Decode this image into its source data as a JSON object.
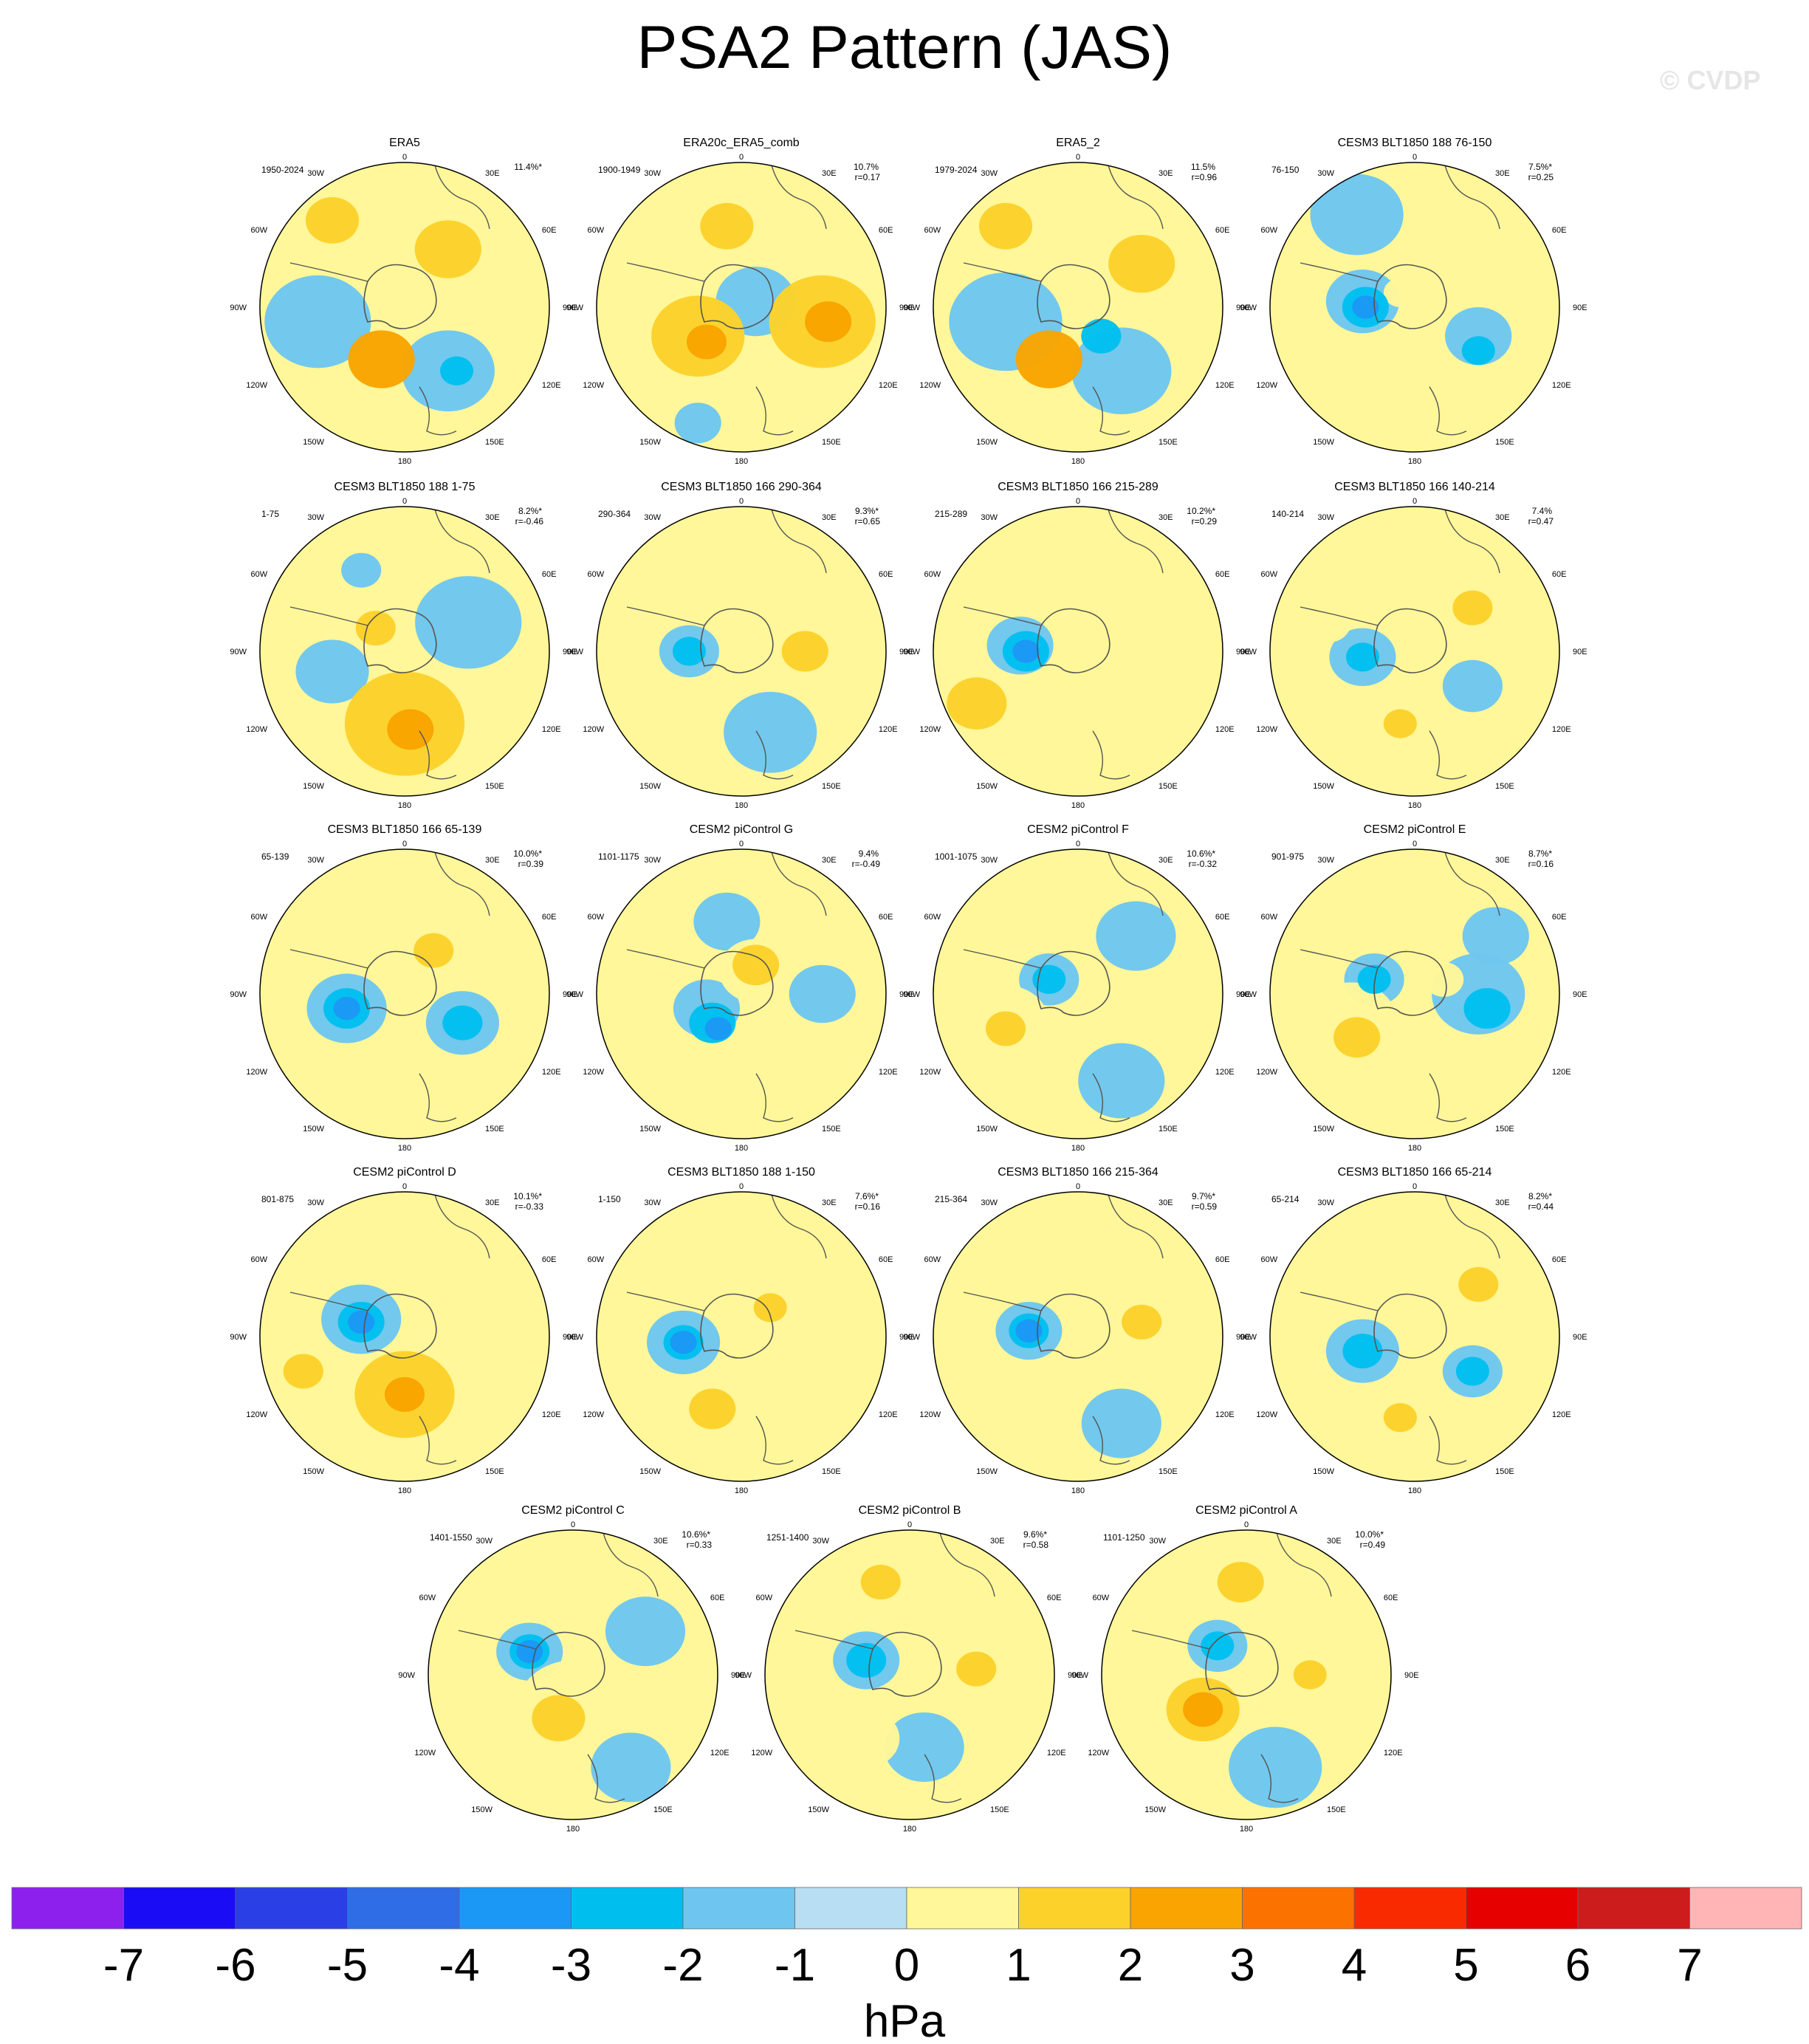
{
  "title": "PSA2 Pattern (JAS)",
  "watermark": "© CVDP",
  "colorbar": {
    "unit": "hPa",
    "ticks": [
      "-7",
      "-6",
      "-5",
      "-4",
      "-3",
      "-2",
      "-1",
      "0",
      "1",
      "2",
      "3",
      "4",
      "5",
      "6",
      "7"
    ],
    "colors": [
      "#8e20ee",
      "#1a0df5",
      "#2a3fe6",
      "#2f6de6",
      "#1b98f5",
      "#00bfef",
      "#6ec6f0",
      "#b7def2",
      "#fff799",
      "#fcd22a",
      "#f9a400",
      "#fb7200",
      "#fa2a00",
      "#e60000",
      "#cc1c1c",
      "#ffb5b5"
    ]
  },
  "grid_labels": {
    "top": "0",
    "bottom": "180",
    "left": [
      "30W",
      "60W",
      "90W",
      "120W",
      "150W"
    ],
    "right": [
      "30E",
      "60E",
      "90E",
      "120E",
      "150E"
    ]
  },
  "panels": [
    {
      "title": "ERA5",
      "period": "1950-2024",
      "pct": "11.4%*",
      "r": "",
      "blobs": [
        [
          0.25,
          0.2,
          0.08,
          2
        ],
        [
          0.65,
          0.3,
          0.1,
          2
        ],
        [
          0.5,
          0.25,
          0.12,
          1
        ],
        [
          0.2,
          0.55,
          0.16,
          -1
        ],
        [
          0.42,
          0.68,
          0.1,
          3
        ],
        [
          0.65,
          0.72,
          0.14,
          -1
        ],
        [
          0.68,
          0.72,
          0.05,
          -2
        ]
      ]
    },
    {
      "title": "ERA20c_ERA5_comb",
      "period": "1900-1949",
      "pct": "10.7%",
      "r": "r=0.17",
      "blobs": [
        [
          0.45,
          0.22,
          0.08,
          2
        ],
        [
          0.35,
          0.6,
          0.14,
          2
        ],
        [
          0.38,
          0.62,
          0.06,
          3
        ],
        [
          0.78,
          0.55,
          0.16,
          2
        ],
        [
          0.8,
          0.55,
          0.07,
          3
        ],
        [
          0.55,
          0.48,
          0.12,
          -1
        ],
        [
          0.35,
          0.9,
          0.07,
          -1
        ]
      ]
    },
    {
      "title": "ERA5_2",
      "period": "1979-2024",
      "pct": "11.5%",
      "r": "r=0.96",
      "blobs": [
        [
          0.25,
          0.22,
          0.08,
          2
        ],
        [
          0.72,
          0.35,
          0.1,
          2
        ],
        [
          0.25,
          0.55,
          0.17,
          -1
        ],
        [
          0.4,
          0.68,
          0.1,
          3
        ],
        [
          0.65,
          0.72,
          0.15,
          -1
        ],
        [
          0.58,
          0.6,
          0.06,
          -2
        ]
      ]
    },
    {
      "title": "CESM3 BLT1850 188 76-150",
      "period": "76-150",
      "pct": "7.5%*",
      "r": "r=0.25",
      "blobs": [
        [
          0.3,
          0.18,
          0.14,
          -1
        ],
        [
          0.32,
          0.48,
          0.11,
          -1
        ],
        [
          0.33,
          0.5,
          0.07,
          -2
        ],
        [
          0.33,
          0.5,
          0.04,
          -3
        ],
        [
          0.72,
          0.6,
          0.1,
          -1
        ],
        [
          0.72,
          0.65,
          0.05,
          -2
        ],
        [
          0.45,
          0.45,
          0.05,
          1
        ]
      ]
    },
    {
      "title": "CESM3 BLT1850 188 1-75",
      "period": "1-75",
      "pct": "8.2%*",
      "r": "r=-0.46",
      "blobs": [
        [
          0.35,
          0.22,
          0.06,
          -1
        ],
        [
          0.4,
          0.42,
          0.06,
          2
        ],
        [
          0.25,
          0.57,
          0.11,
          -1
        ],
        [
          0.5,
          0.75,
          0.18,
          2
        ],
        [
          0.52,
          0.77,
          0.07,
          3
        ],
        [
          0.72,
          0.4,
          0.16,
          -1
        ]
      ]
    },
    {
      "title": "CESM3 BLT1850 166 290-364",
      "period": "290-364",
      "pct": "9.3%*",
      "r": "r=0.65",
      "blobs": [
        [
          0.4,
          0.22,
          0.1,
          1
        ],
        [
          0.32,
          0.5,
          0.09,
          -1
        ],
        [
          0.32,
          0.5,
          0.05,
          -2
        ],
        [
          0.72,
          0.48,
          0.12,
          1
        ],
        [
          0.72,
          0.5,
          0.07,
          2
        ],
        [
          0.6,
          0.78,
          0.14,
          -1
        ]
      ]
    },
    {
      "title": "CESM3 BLT1850 166 215-289",
      "period": "215-289",
      "pct": "10.2%*",
      "r": "r=0.29",
      "blobs": [
        [
          0.3,
          0.48,
          0.1,
          -1
        ],
        [
          0.32,
          0.5,
          0.07,
          -2
        ],
        [
          0.32,
          0.5,
          0.04,
          -3
        ],
        [
          0.15,
          0.68,
          0.09,
          2
        ],
        [
          0.7,
          0.38,
          0.18,
          1
        ]
      ]
    },
    {
      "title": "CESM3 BLT1850 166 140-214",
      "period": "140-214",
      "pct": "7.4%",
      "r": "r=0.47",
      "blobs": [
        [
          0.68,
          0.32,
          0.12,
          1
        ],
        [
          0.7,
          0.35,
          0.06,
          2
        ],
        [
          0.32,
          0.52,
          0.1,
          -1
        ],
        [
          0.32,
          0.52,
          0.05,
          -2
        ],
        [
          0.7,
          0.62,
          0.09,
          -1
        ],
        [
          0.45,
          0.75,
          0.08,
          1
        ],
        [
          0.45,
          0.75,
          0.05,
          2
        ],
        [
          0.2,
          0.4,
          0.07,
          1
        ]
      ]
    },
    {
      "title": "CESM3 BLT1850 166 65-139",
      "period": "65-139",
      "pct": "10.0%*",
      "r": "r=0.39",
      "blobs": [
        [
          0.3,
          0.55,
          0.12,
          -1
        ],
        [
          0.3,
          0.55,
          0.07,
          -2
        ],
        [
          0.3,
          0.55,
          0.04,
          -3
        ],
        [
          0.7,
          0.6,
          0.11,
          -1
        ],
        [
          0.7,
          0.6,
          0.06,
          -2
        ],
        [
          0.72,
          0.32,
          0.12,
          1
        ],
        [
          0.6,
          0.35,
          0.06,
          2
        ],
        [
          0.45,
          0.8,
          0.12,
          1
        ]
      ]
    },
    {
      "title": "CESM2 piControl G",
      "period": "1101-1175",
      "pct": "9.4%",
      "r": "r=-0.49",
      "blobs": [
        [
          0.45,
          0.25,
          0.1,
          -1
        ],
        [
          0.38,
          0.55,
          0.1,
          -1
        ],
        [
          0.4,
          0.6,
          0.07,
          -2
        ],
        [
          0.42,
          0.62,
          0.04,
          -3
        ],
        [
          0.55,
          0.42,
          0.11,
          1
        ],
        [
          0.55,
          0.4,
          0.07,
          2
        ],
        [
          0.5,
          0.78,
          0.13,
          1
        ],
        [
          0.78,
          0.5,
          0.1,
          -1
        ],
        [
          0.15,
          0.55,
          0.06,
          1
        ]
      ]
    },
    {
      "title": "CESM2 piControl F",
      "period": "1001-1075",
      "pct": "10.6%*",
      "r": "r=-0.32",
      "blobs": [
        [
          0.38,
          0.22,
          0.09,
          1
        ],
        [
          0.4,
          0.45,
          0.09,
          -1
        ],
        [
          0.4,
          0.45,
          0.05,
          -2
        ],
        [
          0.25,
          0.6,
          0.13,
          1
        ],
        [
          0.25,
          0.62,
          0.06,
          2
        ],
        [
          0.7,
          0.3,
          0.12,
          -1
        ],
        [
          0.65,
          0.8,
          0.13,
          -1
        ],
        [
          0.75,
          0.55,
          0.08,
          1
        ]
      ]
    },
    {
      "title": "CESM2 piControl E",
      "period": "901-975",
      "pct": "8.7%*",
      "r": "r=0.16",
      "blobs": [
        [
          0.36,
          0.45,
          0.09,
          -1
        ],
        [
          0.36,
          0.45,
          0.05,
          -2
        ],
        [
          0.28,
          0.6,
          0.14,
          1
        ],
        [
          0.3,
          0.65,
          0.07,
          2
        ],
        [
          0.72,
          0.5,
          0.14,
          -1
        ],
        [
          0.75,
          0.55,
          0.07,
          -2
        ],
        [
          0.6,
          0.45,
          0.06,
          1
        ],
        [
          0.78,
          0.3,
          0.1,
          -1
        ]
      ]
    },
    {
      "title": "CESM2 piControl D",
      "period": "801-875",
      "pct": "10.1%*",
      "r": "r=-0.33",
      "blobs": [
        [
          0.35,
          0.44,
          0.12,
          -1
        ],
        [
          0.35,
          0.45,
          0.07,
          -2
        ],
        [
          0.35,
          0.45,
          0.04,
          -3
        ],
        [
          0.5,
          0.7,
          0.15,
          2
        ],
        [
          0.5,
          0.7,
          0.06,
          3
        ],
        [
          0.15,
          0.62,
          0.06,
          2
        ],
        [
          0.62,
          0.48,
          0.05,
          1
        ]
      ]
    },
    {
      "title": "CESM3 BLT1850 188 1-150",
      "period": "1-150",
      "pct": "7.6%*",
      "r": "r=0.16",
      "blobs": [
        [
          0.3,
          0.52,
          0.11,
          -1
        ],
        [
          0.3,
          0.52,
          0.06,
          -2
        ],
        [
          0.3,
          0.52,
          0.04,
          -3
        ],
        [
          0.4,
          0.75,
          0.12,
          1
        ],
        [
          0.4,
          0.75,
          0.07,
          2
        ],
        [
          0.7,
          0.35,
          0.13,
          1
        ],
        [
          0.6,
          0.4,
          0.05,
          2
        ]
      ]
    },
    {
      "title": "CESM3 BLT1850 166 215-364",
      "period": "215-364",
      "pct": "9.7%*",
      "r": "r=0.59",
      "blobs": [
        [
          0.33,
          0.48,
          0.1,
          -1
        ],
        [
          0.33,
          0.48,
          0.06,
          -2
        ],
        [
          0.33,
          0.48,
          0.04,
          -3
        ],
        [
          0.72,
          0.45,
          0.12,
          1
        ],
        [
          0.72,
          0.45,
          0.06,
          2
        ],
        [
          0.45,
          0.72,
          0.1,
          1
        ],
        [
          0.65,
          0.8,
          0.12,
          -1
        ],
        [
          0.35,
          0.2,
          0.1,
          1
        ]
      ]
    },
    {
      "title": "CESM3 BLT1850 166 65-214",
      "period": "65-214",
      "pct": "8.2%*",
      "r": "r=0.44",
      "blobs": [
        [
          0.32,
          0.55,
          0.11,
          -1
        ],
        [
          0.32,
          0.55,
          0.06,
          -2
        ],
        [
          0.7,
          0.62,
          0.09,
          -1
        ],
        [
          0.7,
          0.62,
          0.05,
          -2
        ],
        [
          0.72,
          0.32,
          0.12,
          1
        ],
        [
          0.72,
          0.32,
          0.06,
          2
        ],
        [
          0.45,
          0.75,
          0.09,
          1
        ],
        [
          0.45,
          0.78,
          0.05,
          2
        ]
      ]
    },
    {
      "title": "CESM2 piControl C",
      "period": "1401-1550",
      "pct": "10.6%*",
      "r": "r=0.33",
      "blobs": [
        [
          0.35,
          0.42,
          0.1,
          -1
        ],
        [
          0.35,
          0.42,
          0.06,
          -2
        ],
        [
          0.35,
          0.42,
          0.04,
          -3
        ],
        [
          0.5,
          0.62,
          0.17,
          1
        ],
        [
          0.45,
          0.65,
          0.08,
          2
        ],
        [
          0.35,
          0.15,
          0.08,
          1
        ],
        [
          0.75,
          0.35,
          0.12,
          -1
        ],
        [
          0.7,
          0.82,
          0.12,
          -1
        ]
      ]
    },
    {
      "title": "CESM2 piControl B",
      "period": "1251-1400",
      "pct": "9.6%*",
      "r": "r=0.58",
      "blobs": [
        [
          0.4,
          0.18,
          0.11,
          1
        ],
        [
          0.4,
          0.18,
          0.06,
          2
        ],
        [
          0.35,
          0.45,
          0.1,
          -1
        ],
        [
          0.35,
          0.45,
          0.06,
          -2
        ],
        [
          0.73,
          0.48,
          0.11,
          1
        ],
        [
          0.73,
          0.48,
          0.06,
          2
        ],
        [
          0.55,
          0.75,
          0.12,
          -1
        ],
        [
          0.35,
          0.72,
          0.1,
          1
        ]
      ]
    },
    {
      "title": "CESM2 piControl A",
      "period": "1101-1250",
      "pct": "10.0%*",
      "r": "r=0.49",
      "blobs": [
        [
          0.48,
          0.18,
          0.12,
          1
        ],
        [
          0.48,
          0.18,
          0.07,
          2
        ],
        [
          0.4,
          0.4,
          0.09,
          -1
        ],
        [
          0.4,
          0.4,
          0.05,
          -2
        ],
        [
          0.35,
          0.62,
          0.11,
          2
        ],
        [
          0.35,
          0.62,
          0.06,
          3
        ],
        [
          0.72,
          0.5,
          0.1,
          1
        ],
        [
          0.72,
          0.5,
          0.05,
          2
        ],
        [
          0.6,
          0.82,
          0.14,
          -1
        ]
      ]
    }
  ]
}
